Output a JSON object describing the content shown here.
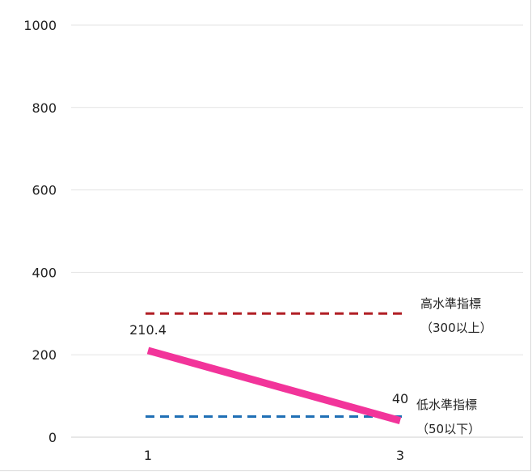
{
  "chart_data": {
    "type": "line",
    "x": [
      "1",
      "3"
    ],
    "ylim": [
      0,
      1000
    ],
    "yticks": [
      "0",
      "200",
      "400",
      "600",
      "800",
      "1000"
    ],
    "grid": true,
    "series": [
      {
        "values": [
          210.4,
          40
        ],
        "color": "#f2349a",
        "data_labels": [
          "210.4",
          "40"
        ]
      }
    ],
    "reference_lines": [
      {
        "value": 300,
        "color": "#b01e24",
        "style": "dashed",
        "label_line1": "高水準指標",
        "label_line2": "（300以上）"
      },
      {
        "value": 50,
        "color": "#1f6fb5",
        "style": "dashed",
        "label_line1": "低水準指標",
        "label_line2": "（50以下）"
      }
    ]
  }
}
